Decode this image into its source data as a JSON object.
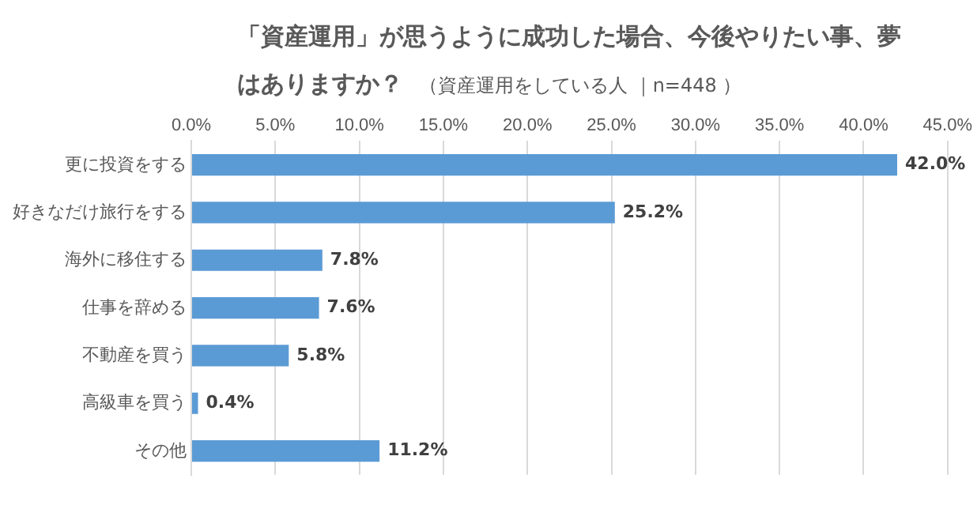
{
  "chart_data": {
    "type": "bar",
    "orientation": "horizontal",
    "title": "「資産運用」が思うように成功した場合、今後やりたい事、夢はありますか？",
    "subtitle": "（資産運用をしている人 ｜n=448 ）",
    "categories": [
      "更に投資をする",
      "好きなだけ旅行をする",
      "海外に移住する",
      "仕事を辞める",
      "不動産を買う",
      "高級車を買う",
      "その他"
    ],
    "values": [
      42.0,
      25.2,
      7.8,
      7.6,
      5.8,
      0.4,
      11.2
    ],
    "value_labels": [
      "42.0%",
      "25.2%",
      "7.8%",
      "7.6%",
      "5.8%",
      "0.4%",
      "11.2%"
    ],
    "color": "#5b9bd5",
    "xlim": [
      0,
      45
    ],
    "xticks": [
      {
        "value": 0,
        "label": "0.0%"
      },
      {
        "value": 5,
        "label": "5.0%"
      },
      {
        "value": 10,
        "label": "10.0%"
      },
      {
        "value": 15,
        "label": "15.0%"
      },
      {
        "value": 20,
        "label": "20.0%"
      },
      {
        "value": 25,
        "label": "25.0%"
      },
      {
        "value": 30,
        "label": "30.0%"
      },
      {
        "value": 35,
        "label": "35.0%"
      },
      {
        "value": 40,
        "label": "40.0%"
      },
      {
        "value": 45,
        "label": "45.0%"
      }
    ],
    "grid": "x",
    "legend": false
  }
}
